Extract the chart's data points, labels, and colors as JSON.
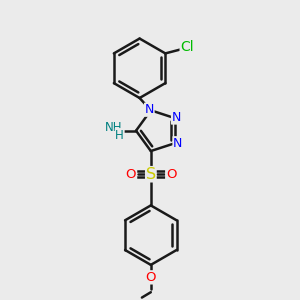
{
  "background_color": "#ebebeb",
  "bond_color": "#1a1a1a",
  "bond_width": 1.8,
  "atom_colors": {
    "N": "#0000ff",
    "Cl": "#00bb00",
    "O": "#ff0000",
    "S": "#cccc00",
    "NH2": "#008080",
    "C": "#000000"
  },
  "font_size": 8.5,
  "figsize": [
    3.0,
    3.0
  ],
  "dpi": 100
}
